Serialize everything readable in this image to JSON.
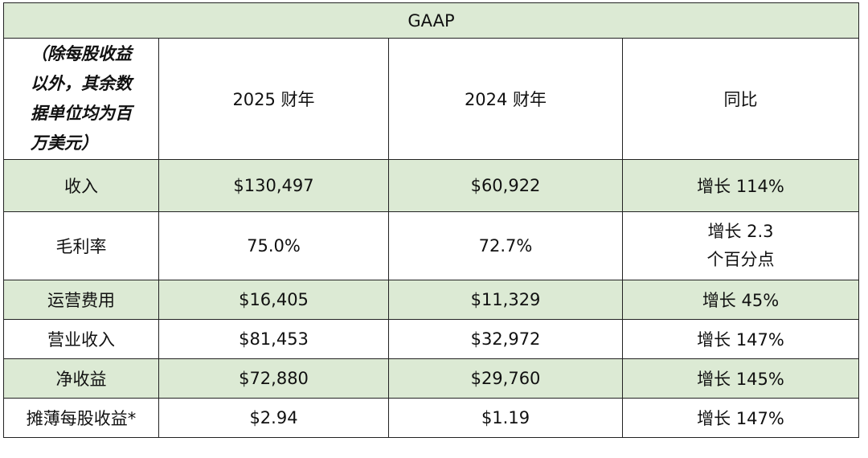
{
  "table": {
    "title": "GAAP",
    "unit_note": "（除每股收益\n以外，其余数\n据单位均为百\n万美元）",
    "columns": [
      "2025 财年",
      "2024 财年",
      "同比"
    ],
    "rows": [
      {
        "label": "收入",
        "fy2025": "$130,497",
        "fy2024": "$60,922",
        "yoy": "增长 114%"
      },
      {
        "label": "毛利率",
        "fy2025": "75.0%",
        "fy2024": "72.7%",
        "yoy": "增长 2.3\n个百分点"
      },
      {
        "label": "运营费用",
        "fy2025": "$16,405",
        "fy2024": "$11,329",
        "yoy": "增长 45%"
      },
      {
        "label": "营业收入",
        "fy2025": "$81,453",
        "fy2024": "$32,972",
        "yoy": "增长 147%"
      },
      {
        "label": "净收益",
        "fy2025": "$72,880",
        "fy2024": "$29,760",
        "yoy": "增长 145%"
      },
      {
        "label": "摊薄每股收益*",
        "fy2025": "$2.94",
        "fy2024": "$1.19",
        "yoy": "增长 147%"
      }
    ]
  },
  "colors": {
    "shade": "#dcead4",
    "border": "#222222"
  }
}
